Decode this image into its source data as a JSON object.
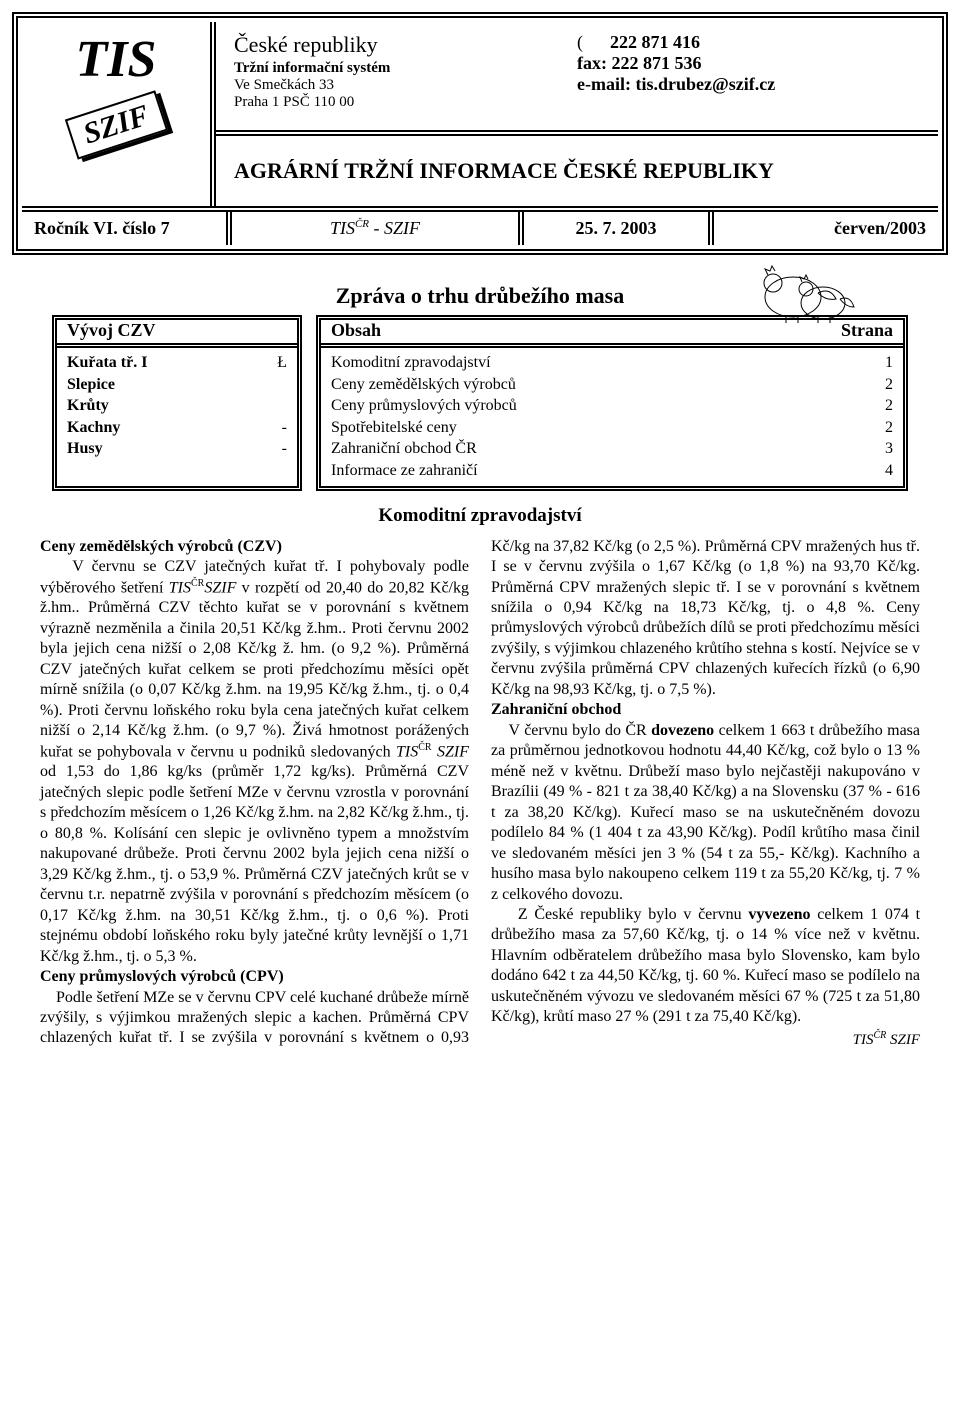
{
  "header": {
    "logo_tis": "TIS",
    "logo_szif": "SZIF",
    "org_country": "České republiky",
    "org_sub": "Tržní informační systém",
    "org_addr1": "Ve Smečkách 33",
    "org_addr2": "Praha 1  PSČ  110 00",
    "phone_label": "(",
    "phone": "222 871 416",
    "fax": "fax: 222 871 536",
    "email": "e-mail: tis.drubez@szif.cz",
    "agrarni": "AGRÁRNÍ TRŽNÍ INFORMACE ČESKÉ REPUBLIKY"
  },
  "issue": {
    "rocnik": "Ročník VI. číslo 7",
    "tis_label": "TIS",
    "tis_sup": "ČR",
    "szif_suffix": " - SZIF",
    "date": "25. 7. 2003",
    "month": "červen/2003"
  },
  "report_title": "Zpráva o  trhu  drůbežího masa",
  "vyvoj": {
    "header": "Vývoj CZV",
    "rows": [
      {
        "l": "Kuřata tř. I",
        "r": "Ł"
      },
      {
        "l": "Slepice",
        "r": ""
      },
      {
        "l": "Krůty",
        "r": ""
      },
      {
        "l": "Kachny",
        "r": "-"
      },
      {
        "l": "Husy",
        "r": "-"
      }
    ]
  },
  "obsah": {
    "header_l": "Obsah",
    "header_r": "Strana",
    "rows": [
      {
        "l": "Komoditní zpravodajství",
        "r": "1"
      },
      {
        "l": "Ceny zemědělských výrobců",
        "r": "2"
      },
      {
        "l": "Ceny průmyslových výrobců",
        "r": "2"
      },
      {
        "l": "Spotřebitelské ceny",
        "r": "2"
      },
      {
        "l": "Zahraniční obchod ČR",
        "r": "3"
      },
      {
        "l": "Informace ze zahraničí",
        "r": "4"
      }
    ]
  },
  "komod_title": "Komoditní zpravodajství",
  "body": {
    "sec1_head": "Ceny zemědělských výrobců (CZV)",
    "sec1_p1a": "V červnu se CZV jatečných kuřat tř. I pohybovaly podle výběrového šetření ",
    "sec1_p1_tis": "TIS",
    "sec1_p1_sup": "ČR",
    "sec1_p1_szif": "SZIF",
    "sec1_p1b": " v rozpětí od 20,40 do 20,82 Kč/kg ž.hm.. Průměrná CZV těchto kuřat se v porovnání s květnem výrazně nezměnila a činila 20,51 Kč/kg ž.hm.. Proti červnu 2002 byla jejich cena nižší o 2,08 Kč/kg ž. hm. (o 9,2 %). Průměrná CZV jatečných kuřat celkem se proti předchozímu měsíci opět mírně snížila (o 0,07 Kč/kg ž.hm. na 19,95 Kč/kg ž.hm., tj. o 0,4 %). Proti červnu loňského roku byla cena jatečných kuřat celkem nižší o 2,14 Kč/kg ž.hm. (o 9,7 %). Živá hmotnost porážených kuřat se pohybovala v červnu u podniků sledovaných ",
    "sec1_p1_tis2": "TIS",
    "sec1_p1_sup2": "ČR",
    "sec1_p1_szif2": " SZIF",
    "sec1_p1c": " od 1,53 do 1,86 kg/ks (průměr 1,72 kg/ks). Průměrná CZV jatečných slepic podle šetření MZe v červnu vzrostla v porovnání s předchozím měsícem o 1,26 Kč/kg ž.hm. na 2,82 Kč/kg ž.hm., tj. o 80,8 %. Kolísání cen slepic je ovlivněno typem a množstvím nakupované drůbeže. Proti červnu 2002 byla jejich cena nižší o 3,29 Kč/kg ž.hm., tj. o 53,9 %. Průměrná CZV jatečných krůt se v červnu t.r. nepatrně zvýšila v porovnání s předchozím měsícem (o 0,17 Kč/kg ž.hm. na 30,51 Kč/kg ž.hm., tj. o 0,6 %). Proti stejnému období loňského roku byly jatečné krůty levnější o 1,71 Kč/kg ž.hm., tj. o 5,3 %.",
    "sec2_head": "Ceny průmyslových výrobců (CPV)",
    "sec2_p1": "Podle šetření MZe se v červnu CPV celé kuchané drůbeže mírně zvýšily, s výjimkou mražených slepic a kachen. Průměrná CPV chlazených kuřat tř. I se zvýšila v porovnání s květnem o 0,93 Kč/kg na 37,82 Kč/kg (o 2,5 %). Průměrná CPV mražených hus tř. I se v červnu zvýšila o 1,67 Kč/kg (o 1,8 %) na 93,70 Kč/kg. Průměrná CPV mražených slepic tř. I se v porovnání s květnem snížila o 0,94 Kč/kg na 18,73 Kč/kg, tj. o 4,8 %. Ceny průmyslových výrobců drůbežích dílů se proti předchozímu měsíci zvýšily, s výjimkou chlazeného krůtího stehna s kostí. Nejvíce se v červnu zvýšila průměrná CPV chlazených kuřecích řízků (o 6,90 Kč/kg na 98,93 Kč/kg, tj. o 7,5 %).",
    "sec3_head": "Zahraniční obchod",
    "sec3_p1a": "V červnu bylo do ČR ",
    "sec3_p1_b1": "dovezeno",
    "sec3_p1b": " celkem 1 663 t drůbežího masa za průměrnou jednotkovou hodnotu 44,40 Kč/kg, což bylo o 13 % méně než v květnu. Drůbeží maso bylo nejčastěji nakupováno v Brazílii (49 % - 821 t za 38,40 Kč/kg) a na Slovensku (37 % - 616 t za 38,20 Kč/kg). Kuřecí maso se na uskutečněném dovozu podílelo 84 % (1 404 t za 43,90 Kč/kg). Podíl krůtího masa činil ve sledovaném měsíci jen 3 % (54 t za 55,- Kč/kg). Kachního a husího masa bylo nakoupeno celkem 119 t za 55,20 Kč/kg, tj. 7 % z celkového dovozu.",
    "sec3_p2a": "Z České republiky bylo v červnu ",
    "sec3_p2_b1": "vyvezeno",
    "sec3_p2b": " celkem 1 074 t drůbežího masa za 57,60 Kč/kg, tj. o 14 % více než v květnu. Hlavním odběratelem drůbežího masa bylo Slovensko, kam bylo dodáno 642 t za 44,50 Kč/kg, tj. 60 %. Kuřecí maso se podílelo na uskutečněném vývozu ve sledovaném měsíci 67 % (725 t za 51,80 Kč/kg), krůtí maso 27 % (291 t za 75,40 Kč/kg).",
    "footer_tis": "TIS",
    "footer_sup": "ČR",
    "footer_szif": " SZIF"
  }
}
